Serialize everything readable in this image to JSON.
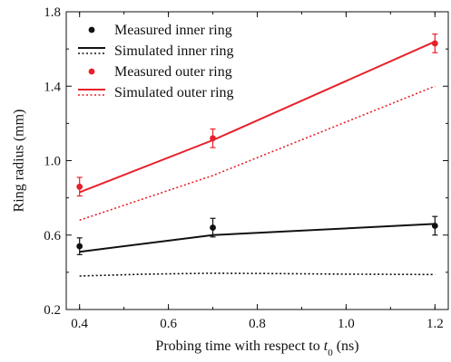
{
  "chart_data": {
    "type": "scatter",
    "xlabel_prefix": "Probing time with respect to ",
    "xlabel_var": "t",
    "xlabel_sub": "0",
    "xlabel_suffix": " (ns)",
    "ylabel": "Ring radius (mm)",
    "xlim": [
      0.37,
      1.23
    ],
    "ylim": [
      0.2,
      1.8
    ],
    "x_ticks": [
      0.4,
      0.6,
      0.8,
      1.0,
      1.2
    ],
    "x_tick_labels": [
      "0.4",
      "0.6",
      "0.8",
      "1.0",
      "1.2"
    ],
    "y_ticks": [
      0.2,
      0.6,
      1.0,
      1.4,
      1.8
    ],
    "y_tick_labels": [
      "0.2",
      "0.6",
      "1.0",
      "1.4",
      "1.8"
    ],
    "grid": false,
    "legend_position": "top-left",
    "series": [
      {
        "name": "Measured inner ring",
        "kind": "points",
        "color": "#111111",
        "points": [
          {
            "x": 0.4,
            "y": 0.54,
            "err": 0.045
          },
          {
            "x": 0.7,
            "y": 0.64,
            "err": 0.05
          },
          {
            "x": 1.2,
            "y": 0.65,
            "err": 0.05
          }
        ]
      },
      {
        "name": "Simulated inner ring",
        "kind": "line",
        "style": "dotted",
        "color": "#111111",
        "x": [
          0.4,
          0.55,
          0.7,
          0.85,
          1.0,
          1.2
        ],
        "y": [
          0.38,
          0.39,
          0.395,
          0.393,
          0.39,
          0.388
        ]
      },
      {
        "name": "Measured outer ring",
        "kind": "points",
        "color": "#e8202a",
        "points": [
          {
            "x": 0.4,
            "y": 0.86,
            "err": 0.05
          },
          {
            "x": 0.7,
            "y": 1.12,
            "err": 0.05
          },
          {
            "x": 1.2,
            "y": 1.63,
            "err": 0.05
          }
        ]
      },
      {
        "name": "Simulated outer ring",
        "kind": "line",
        "style": "dotted",
        "color": "#e8202a",
        "x": [
          0.4,
          0.7,
          1.2
        ],
        "y": [
          0.68,
          0.92,
          1.4
        ]
      }
    ],
    "extra_lines": [
      {
        "kind": "line",
        "style": "solid",
        "color": "#111111",
        "x": [
          0.4,
          0.7,
          1.2
        ],
        "y": [
          0.51,
          0.6,
          0.66
        ]
      },
      {
        "kind": "line",
        "style": "solid",
        "color": "#e8202a",
        "x": [
          0.4,
          0.7,
          1.2
        ],
        "y": [
          0.83,
          1.11,
          1.64
        ]
      }
    ],
    "legend": [
      {
        "label": "Measured inner ring",
        "symbol": "dot",
        "color": "#111111"
      },
      {
        "label": "Simulated inner ring",
        "symbol": "line-solid-dotted",
        "color": "#111111"
      },
      {
        "label": "Measured outer ring",
        "symbol": "dot",
        "color": "#e8202a"
      },
      {
        "label": "Simulated outer ring",
        "symbol": "line-solid-dotted",
        "color": "#e8202a"
      }
    ]
  }
}
